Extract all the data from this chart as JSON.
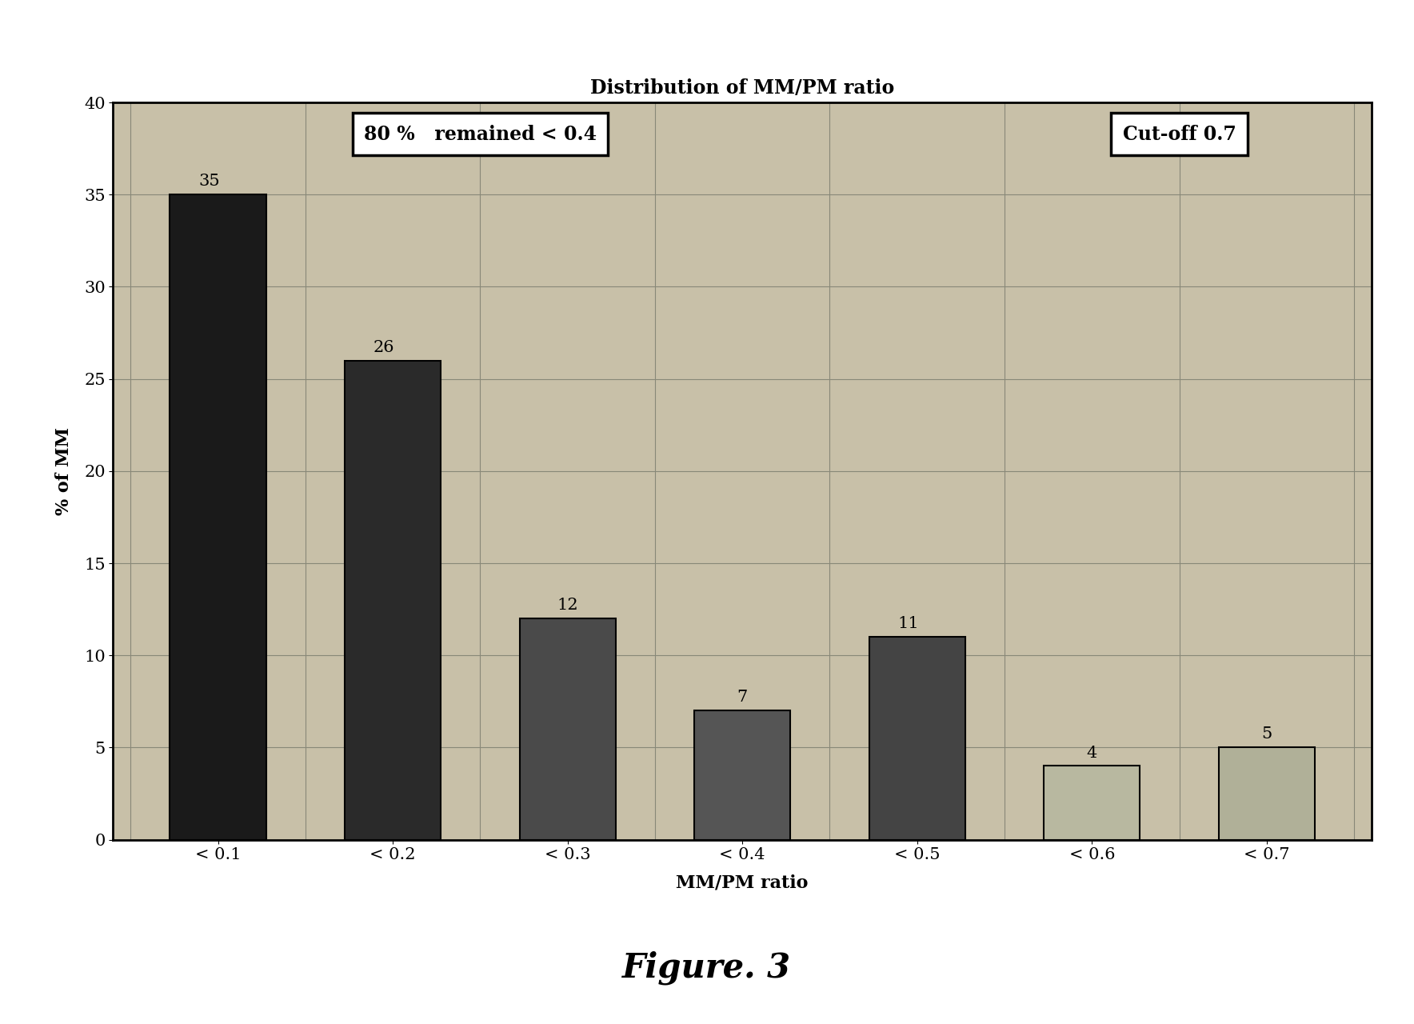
{
  "title": "Distribution of MM/PM ratio",
  "xlabel": "MM/PM ratio",
  "ylabel": "% of MM",
  "categories": [
    "< 0.1",
    "< 0.2",
    "< 0.3",
    "< 0.4",
    "< 0.5",
    "< 0.6",
    "< 0.7"
  ],
  "values": [
    35,
    26,
    12,
    7,
    11,
    4,
    5
  ],
  "bar_colors": [
    "#1a1a1a",
    "#2a2a2a",
    "#4a4a4a",
    "#555555",
    "#444444",
    "#b8b8a0",
    "#b0b098"
  ],
  "bar_edge_colors": [
    "#000000",
    "#000000",
    "#000000",
    "#000000",
    "#000000",
    "#000000",
    "#000000"
  ],
  "ylim": [
    0,
    40
  ],
  "yticks": [
    0,
    5,
    10,
    15,
    20,
    25,
    30,
    35,
    40
  ],
  "annotation_80pct": "80 %   remained < 0.4",
  "annotation_cutoff": "Cut-off 0.7",
  "figure_caption": "Figure. 3",
  "plot_bg_color": "#c8c0a8",
  "fig_bg_color": "#ffffff",
  "grid_color": "#888878"
}
